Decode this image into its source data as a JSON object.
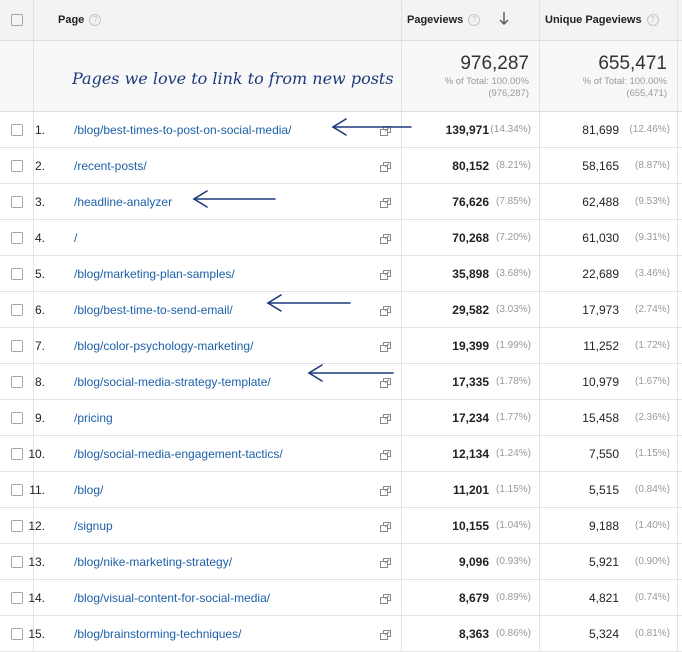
{
  "header": {
    "page_label": "Page",
    "pageviews_label": "Pageviews",
    "unique_label": "Unique Pageviews",
    "help_glyph": "?"
  },
  "annotation": "Pages we love to link to from new posts",
  "totals": {
    "pageviews": "976,287",
    "pageviews_pct": "% of Total: 100.00%",
    "pageviews_of": "(976,287)",
    "unique": "655,471",
    "unique_pct": "% of Total: 100.00%",
    "unique_of": "(655,471)"
  },
  "rows": [
    {
      "n": "1.",
      "page": "/blog/best-times-to-post-on-social-media/",
      "pv": "139,971",
      "pv_pct": "(14.34%)",
      "upv": "81,699",
      "upv_pct": "(12.46%)"
    },
    {
      "n": "2.",
      "page": "/recent-posts/",
      "pv": "80,152",
      "pv_pct": "(8.21%)",
      "upv": "58,165",
      "upv_pct": "(8.87%)"
    },
    {
      "n": "3.",
      "page": "/headline-analyzer",
      "pv": "76,626",
      "pv_pct": "(7.85%)",
      "upv": "62,488",
      "upv_pct": "(9.53%)"
    },
    {
      "n": "4.",
      "page": "/",
      "pv": "70,268",
      "pv_pct": "(7.20%)",
      "upv": "61,030",
      "upv_pct": "(9.31%)"
    },
    {
      "n": "5.",
      "page": "/blog/marketing-plan-samples/",
      "pv": "35,898",
      "pv_pct": "(3.68%)",
      "upv": "22,689",
      "upv_pct": "(3.46%)"
    },
    {
      "n": "6.",
      "page": "/blog/best-time-to-send-email/",
      "pv": "29,582",
      "pv_pct": "(3.03%)",
      "upv": "17,973",
      "upv_pct": "(2.74%)"
    },
    {
      "n": "7.",
      "page": "/blog/color-psychology-marketing/",
      "pv": "19,399",
      "pv_pct": "(1.99%)",
      "upv": "11,252",
      "upv_pct": "(1.72%)"
    },
    {
      "n": "8.",
      "page": "/blog/social-media-strategy-template/",
      "pv": "17,335",
      "pv_pct": "(1.78%)",
      "upv": "10,979",
      "upv_pct": "(1.67%)"
    },
    {
      "n": "9.",
      "page": "/pricing",
      "pv": "17,234",
      "pv_pct": "(1.77%)",
      "upv": "15,458",
      "upv_pct": "(2.36%)"
    },
    {
      "n": "10.",
      "page": "/blog/social-media-engagement-tactics/",
      "pv": "12,134",
      "pv_pct": "(1.24%)",
      "upv": "7,550",
      "upv_pct": "(1.15%)"
    },
    {
      "n": "11.",
      "page": "/blog/",
      "pv": "11,201",
      "pv_pct": "(1.15%)",
      "upv": "5,515",
      "upv_pct": "(0.84%)"
    },
    {
      "n": "12.",
      "page": "/signup",
      "pv": "10,155",
      "pv_pct": "(1.04%)",
      "upv": "9,188",
      "upv_pct": "(1.40%)"
    },
    {
      "n": "13.",
      "page": "/blog/nike-marketing-strategy/",
      "pv": "9,096",
      "pv_pct": "(0.93%)",
      "upv": "5,921",
      "upv_pct": "(0.90%)"
    },
    {
      "n": "14.",
      "page": "/blog/visual-content-for-social-media/",
      "pv": "8,679",
      "pv_pct": "(0.89%)",
      "upv": "4,821",
      "upv_pct": "(0.74%)"
    },
    {
      "n": "15.",
      "page": "/blog/brainstorming-techniques/",
      "pv": "8,363",
      "pv_pct": "(0.86%)",
      "upv": "5,324",
      "upv_pct": "(0.81%)"
    }
  ],
  "icons": {
    "sort": "arrow-down-icon",
    "external": "open-external-icon",
    "checkbox": "checkbox-icon",
    "annotation_arrow": "hand-drawn-arrow-icon"
  },
  "colors": {
    "link": "#1c60a8",
    "annotation": "#1d3a7a",
    "header_bg": "#f3f3f3"
  }
}
